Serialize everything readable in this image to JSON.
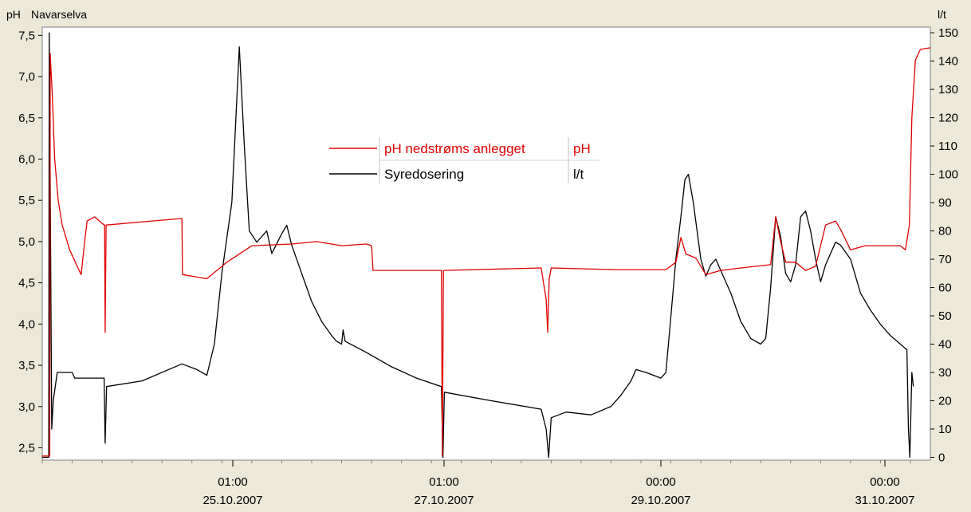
{
  "chart_data": {
    "type": "line",
    "title": "Navarselva",
    "ylabel_left": "pH",
    "ylabel_right": "l/t",
    "left_axis": {
      "min": 2.35,
      "max": 7.6,
      "ticks": [
        "7,5",
        "7,0",
        "6,5",
        "6,0",
        "5,5",
        "5,0",
        "4,5",
        "4,0",
        "3,5",
        "3,0",
        "2,5"
      ]
    },
    "right_axis": {
      "min": -1,
      "max": 152,
      "ticks": [
        "150",
        "140",
        "130",
        "120",
        "110",
        "100",
        "90",
        "80",
        "70",
        "60",
        "50",
        "40",
        "30",
        "20",
        "10",
        "0"
      ]
    },
    "x_axis": {
      "min_hours": 0,
      "max_hours": 178,
      "labels": [
        {
          "time": "01:00",
          "date": "25.10.2007"
        },
        {
          "time": "01:00",
          "date": "27.10.2007"
        },
        {
          "time": "00:00",
          "date": "29.10.2007"
        },
        {
          "time": "00:00",
          "date": "31.10.2007"
        }
      ]
    },
    "legend": {
      "placement": "center-top",
      "entries": [
        {
          "name": "pH nedstrøms anlegget",
          "unit": "pH",
          "color": "#e00000"
        },
        {
          "name": "Syredosering",
          "unit": "l/t",
          "color": "#000000"
        }
      ]
    },
    "series": [
      {
        "name": "pH nedstrøms anlegget",
        "axis": "left",
        "color": "#e00000",
        "points": [
          [
            0,
            2.4
          ],
          [
            1.5,
            2.4
          ],
          [
            1.6,
            7.28
          ],
          [
            2,
            6.8
          ],
          [
            2.5,
            6.0
          ],
          [
            3.2,
            5.5
          ],
          [
            4,
            5.2
          ],
          [
            5.5,
            4.9
          ],
          [
            7,
            4.7
          ],
          [
            7.8,
            4.6
          ],
          [
            8.5,
            5.0
          ],
          [
            9,
            5.25
          ],
          [
            10.5,
            5.3
          ],
          [
            12,
            5.22
          ],
          [
            12.5,
            5.2
          ],
          [
            12.6,
            3.9
          ],
          [
            12.8,
            5.2
          ],
          [
            22,
            5.25
          ],
          [
            28,
            5.28
          ],
          [
            28.1,
            4.6
          ],
          [
            33,
            4.55
          ],
          [
            37,
            4.75
          ],
          [
            42,
            4.95
          ],
          [
            50,
            4.97
          ],
          [
            55,
            5.0
          ],
          [
            60,
            4.95
          ],
          [
            65,
            4.97
          ],
          [
            66,
            4.95
          ],
          [
            66.3,
            4.65
          ],
          [
            80,
            4.65
          ],
          [
            80.2,
            2.4
          ],
          [
            80.4,
            4.65
          ],
          [
            100,
            4.68
          ],
          [
            101,
            4.3
          ],
          [
            101.3,
            3.9
          ],
          [
            101.6,
            4.55
          ],
          [
            102,
            4.68
          ],
          [
            115,
            4.66
          ],
          [
            125,
            4.66
          ],
          [
            127,
            4.75
          ],
          [
            128,
            5.05
          ],
          [
            129,
            4.85
          ],
          [
            131,
            4.8
          ],
          [
            133,
            4.6
          ],
          [
            136,
            4.65
          ],
          [
            140,
            4.68
          ],
          [
            146,
            4.72
          ],
          [
            147,
            5.3
          ],
          [
            148,
            5.0
          ],
          [
            149,
            4.75
          ],
          [
            151,
            4.75
          ],
          [
            153,
            4.65
          ],
          [
            155,
            4.7
          ],
          [
            156,
            4.95
          ],
          [
            157,
            5.2
          ],
          [
            159,
            5.25
          ],
          [
            160,
            5.15
          ],
          [
            162,
            4.9
          ],
          [
            165,
            4.95
          ],
          [
            172,
            4.95
          ],
          [
            173,
            4.9
          ],
          [
            173.8,
            5.2
          ],
          [
            174.3,
            6.5
          ],
          [
            175,
            7.2
          ],
          [
            176,
            7.33
          ],
          [
            178,
            7.35
          ]
        ]
      },
      {
        "name": "Syredosering",
        "axis": "right",
        "color": "#000000",
        "points": [
          [
            0,
            0
          ],
          [
            1.3,
            0
          ],
          [
            1.4,
            150
          ],
          [
            1.9,
            10
          ],
          [
            2.2,
            20
          ],
          [
            3,
            30
          ],
          [
            6,
            30
          ],
          [
            6.5,
            28
          ],
          [
            12,
            28
          ],
          [
            12.4,
            28
          ],
          [
            12.6,
            5
          ],
          [
            12.9,
            25
          ],
          [
            20,
            27
          ],
          [
            28,
            33
          ],
          [
            31,
            31
          ],
          [
            33,
            29
          ],
          [
            34.5,
            40
          ],
          [
            36,
            65
          ],
          [
            38,
            90
          ],
          [
            39.5,
            145
          ],
          [
            40.5,
            110
          ],
          [
            41.5,
            80
          ],
          [
            43,
            76
          ],
          [
            45,
            80
          ],
          [
            46,
            72
          ],
          [
            48,
            79
          ],
          [
            49,
            82
          ],
          [
            50,
            75
          ],
          [
            52,
            65
          ],
          [
            54,
            55
          ],
          [
            56,
            48
          ],
          [
            58,
            43
          ],
          [
            59,
            41
          ],
          [
            60,
            40
          ],
          [
            60.3,
            45
          ],
          [
            60.7,
            41
          ],
          [
            65,
            37
          ],
          [
            70,
            32
          ],
          [
            75,
            28
          ],
          [
            80,
            25
          ],
          [
            80.3,
            0
          ],
          [
            80.6,
            23
          ],
          [
            90,
            20
          ],
          [
            100,
            17
          ],
          [
            101,
            10
          ],
          [
            101.5,
            0
          ],
          [
            102,
            14
          ],
          [
            105,
            16
          ],
          [
            110,
            15
          ],
          [
            114,
            18
          ],
          [
            116,
            22
          ],
          [
            118,
            27
          ],
          [
            119,
            31
          ],
          [
            121,
            30
          ],
          [
            124,
            28
          ],
          [
            125,
            30
          ],
          [
            126,
            50
          ],
          [
            127,
            70
          ],
          [
            128,
            85
          ],
          [
            128.8,
            98
          ],
          [
            129.5,
            100
          ],
          [
            130.5,
            90
          ],
          [
            132,
            70
          ],
          [
            133,
            64
          ],
          [
            134,
            68
          ],
          [
            135,
            70
          ],
          [
            136,
            66
          ],
          [
            138,
            58
          ],
          [
            140,
            48
          ],
          [
            142,
            42
          ],
          [
            144,
            40
          ],
          [
            145,
            42
          ],
          [
            146,
            60
          ],
          [
            147,
            85
          ],
          [
            148,
            78
          ],
          [
            149,
            65
          ],
          [
            150,
            62
          ],
          [
            151,
            68
          ],
          [
            152,
            85
          ],
          [
            153,
            87
          ],
          [
            154,
            80
          ],
          [
            155,
            70
          ],
          [
            156,
            62
          ],
          [
            157,
            68
          ],
          [
            158,
            72
          ],
          [
            159,
            76
          ],
          [
            160,
            75
          ],
          [
            162,
            70
          ],
          [
            164,
            58
          ],
          [
            166,
            52
          ],
          [
            168,
            47
          ],
          [
            170,
            43
          ],
          [
            172,
            40
          ],
          [
            173.3,
            38
          ],
          [
            173.6,
            10
          ],
          [
            173.9,
            0
          ],
          [
            174.3,
            30
          ],
          [
            174.6,
            25
          ]
        ]
      }
    ]
  }
}
